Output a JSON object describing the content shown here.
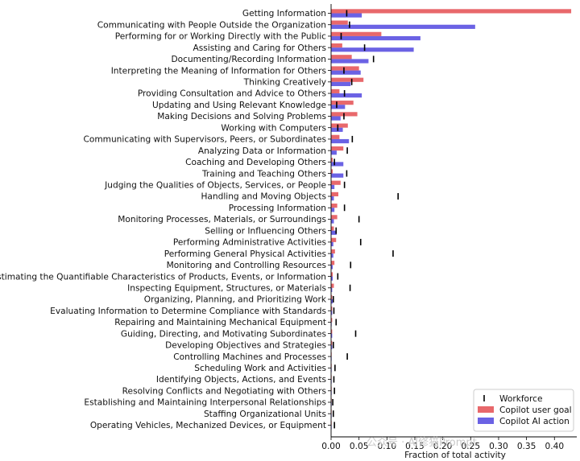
{
  "chart_data": {
    "type": "bar",
    "orientation": "horizontal",
    "title": "",
    "xlabel": "Fraction of total activity",
    "ylabel": "",
    "xlim": [
      0.0,
      0.44
    ],
    "x_ticks": [
      "0.00",
      "0.05",
      "0.10",
      "0.15",
      "0.20",
      "0.25",
      "0.30",
      "0.35",
      "0.40"
    ],
    "grid": false,
    "legend_position": "bottom-right",
    "categories": [
      "Getting Information",
      "Communicating with People Outside the Organization",
      "Performing for or Working Directly with the Public",
      "Assisting and Caring for Others",
      "Documenting/Recording Information",
      "Interpreting the Meaning of Information for Others",
      "Thinking Creatively",
      "Providing Consultation and Advice to Others",
      "Updating and Using Relevant Knowledge",
      "Making Decisions and Solving Problems",
      "Working with Computers",
      "Communicating with Supervisors, Peers, or Subordinates",
      "Analyzing Data or Information",
      "Coaching and Developing Others",
      "Training and Teaching Others",
      "Judging the Qualities of Objects, Services, or People",
      "Handling and Moving Objects",
      "Processing Information",
      "Monitoring Processes, Materials, or Surroundings",
      "Selling or Influencing Others",
      "Performing Administrative Activities",
      "Performing General Physical Activities",
      "Monitoring and Controlling Resources",
      "Estimating the Quantifiable Characteristics of Products, Events, or Information",
      "Inspecting Equipment, Structures, or Materials",
      "Organizing, Planning, and Prioritizing Work",
      "Evaluating Information to Determine Compliance with Standards",
      "Repairing and Maintaining Mechanical Equipment",
      "Guiding, Directing, and Motivating Subordinates",
      "Developing Objectives and Strategies",
      "Controlling Machines and Processes",
      "Scheduling Work and Activities",
      "Identifying Objects, Actions, and Events",
      "Resolving Conflicts and Negotiating with Others",
      "Establishing and Maintaining Interpersonal Relationships",
      "Staffing Organizational Units",
      "Operating Vehicles, Mechanized Devices, or Equipment"
    ],
    "series": [
      {
        "name": "Copilot user goal",
        "color": "#e8686b",
        "values": [
          0.43,
          0.03,
          0.09,
          0.02,
          0.037,
          0.05,
          0.058,
          0.015,
          0.04,
          0.047,
          0.03,
          0.015,
          0.022,
          0.003,
          0.003,
          0.017,
          0.013,
          0.011,
          0.011,
          0.005,
          0.009,
          0.007,
          0.006,
          0.003,
          0.005,
          0.002,
          0.002,
          0.002,
          0.002,
          0.002,
          0.001,
          0.001,
          0.001,
          0.001,
          0.001,
          0.001,
          0.001
        ]
      },
      {
        "name": "Copilot AI action",
        "color": "#6b62e4",
        "values": [
          0.055,
          0.258,
          0.16,
          0.148,
          0.067,
          0.053,
          0.035,
          0.055,
          0.025,
          0.017,
          0.021,
          0.032,
          0.01,
          0.022,
          0.022,
          0.006,
          0.005,
          0.006,
          0.005,
          0.01,
          0.004,
          0.004,
          0.003,
          0.003,
          0.002,
          0.003,
          0.002,
          0.001,
          0.002,
          0.002,
          0.001,
          0.001,
          0.001,
          0.001,
          0.001,
          0.001,
          0.001
        ]
      },
      {
        "name": "Workforce",
        "marker": "|",
        "color": "#000000",
        "values": [
          0.028,
          0.033,
          0.018,
          0.06,
          0.076,
          0.023,
          0.037,
          0.024,
          0.01,
          0.023,
          0.012,
          0.038,
          0.029,
          0.006,
          0.028,
          0.024,
          0.12,
          0.024,
          0.05,
          0.009,
          0.053,
          0.111,
          0.035,
          0.012,
          0.034,
          0.004,
          0.005,
          0.009,
          0.044,
          0.004,
          0.029,
          0.007,
          0.005,
          0.006,
          0.003,
          0.004,
          0.006
        ]
      }
    ]
  },
  "watermark": "公众号 · AI修猫Prompt"
}
